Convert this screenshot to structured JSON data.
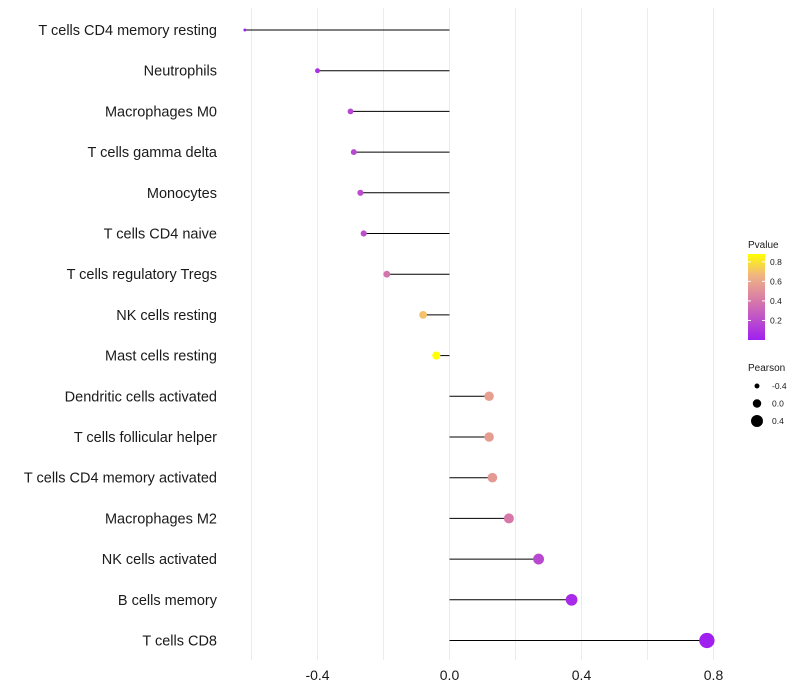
{
  "chart_data": {
    "type": "lollipop",
    "title": "",
    "xlabel": "",
    "ylabel": "",
    "xlim": [
      -0.63,
      0.83
    ],
    "xticks": [
      -0.4,
      0.0,
      0.4,
      0.8
    ],
    "xtick_labels": [
      "-0.4",
      "0.0",
      "0.4",
      "0.8"
    ],
    "grid": true,
    "categories": [
      "T cells CD4 memory resting",
      "Neutrophils",
      "Macrophages M0",
      "T cells gamma delta",
      "Monocytes",
      "T cells CD4 naive",
      "T cells regulatory  Tregs ",
      "NK cells resting",
      "Mast cells resting",
      "Dendritic cells activated",
      "T cells follicular helper",
      "T cells CD4 memory activated",
      "Macrophages M2",
      "NK cells activated",
      "B cells memory",
      "T cells CD8"
    ],
    "pearson": [
      -0.62,
      -0.4,
      -0.3,
      -0.29,
      -0.27,
      -0.26,
      -0.19,
      -0.08,
      -0.04,
      0.12,
      0.12,
      0.13,
      0.18,
      0.27,
      0.37,
      0.78
    ],
    "pvalue": [
      0.01,
      0.08,
      0.17,
      0.18,
      0.2,
      0.21,
      0.38,
      0.7,
      0.88,
      0.57,
      0.56,
      0.54,
      0.4,
      0.18,
      0.05,
      0.0
    ],
    "legend": {
      "color_title": "Pvalue",
      "color_ticks": [
        0.2,
        0.4,
        0.6,
        0.8
      ],
      "color_tick_labels": [
        "0.2",
        "0.4",
        "0.6",
        "0.8"
      ],
      "color_range": [
        0.0,
        0.88
      ],
      "color_low": "#a020f0",
      "color_high": "#ffff00",
      "size_title": "Pearson",
      "size_values": [
        -0.4,
        0.0,
        0.4
      ],
      "size_labels": [
        "-0.4",
        "0.0",
        "0.4"
      ],
      "placement": "right"
    }
  }
}
